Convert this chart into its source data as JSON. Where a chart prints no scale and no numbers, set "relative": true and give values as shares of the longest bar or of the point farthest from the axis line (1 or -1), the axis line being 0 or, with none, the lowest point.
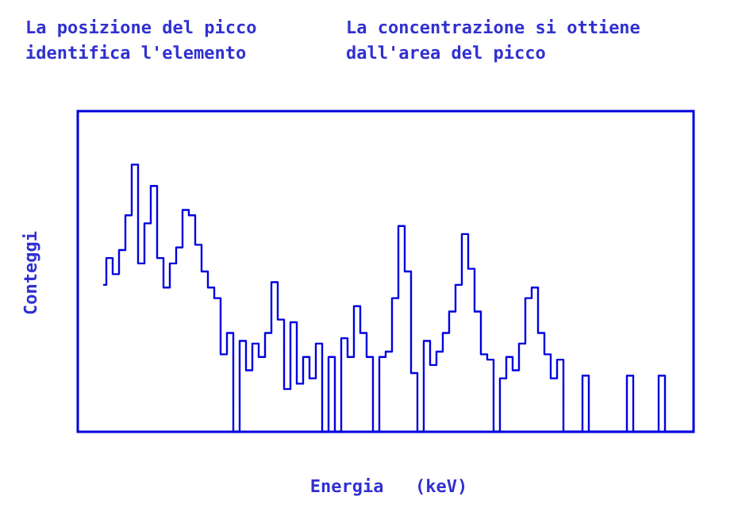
{
  "chart_data": {
    "type": "step",
    "relative": true,
    "xlabel": "Energia   (keV)",
    "ylabel": "Conteggi",
    "annotations": [
      "La posizione del picco\nidentifica l'elemento",
      "La concentrazione si ottiene\ndall'area del picco"
    ],
    "categories": [
      null,
      null,
      null,
      null,
      null,
      null,
      null,
      null,
      null,
      null,
      null,
      null,
      null,
      null,
      null,
      null,
      null,
      null,
      null,
      null,
      null,
      null,
      null,
      null,
      null,
      null,
      null,
      null,
      null,
      null,
      null,
      null,
      null,
      null,
      null,
      null,
      null,
      null,
      null,
      null,
      null,
      null,
      null,
      null,
      null,
      null,
      null,
      null,
      null,
      null,
      null,
      null,
      null,
      null,
      null,
      null,
      null,
      null,
      null,
      null,
      null,
      null,
      null,
      null,
      null,
      null,
      null,
      null,
      null,
      null,
      null,
      null,
      null,
      null,
      null,
      null,
      null,
      null,
      null,
      null,
      null,
      null,
      null,
      null,
      null,
      null,
      null,
      null,
      null,
      null,
      null,
      null,
      null,
      null,
      null,
      null,
      null,
      null
    ],
    "series": [
      {
        "color": "#0000dd",
        "values": [
          null,
          null,
          null,
          null,
          0.55,
          0.65,
          0.59,
          0.68,
          0.81,
          1,
          0.63,
          0.78,
          0.92,
          0.65,
          0.54,
          0.63,
          0.69,
          0.83,
          0.81,
          0.7,
          0.6,
          0.54,
          0.5,
          0.29,
          0.37,
          0,
          0.34,
          0.23,
          0.33,
          0.28,
          0.37,
          0.56,
          0.42,
          0.16,
          0.41,
          0.18,
          0.28,
          0.2,
          0.33,
          0,
          0.28,
          0,
          0.35,
          0.28,
          0.47,
          0.37,
          0.28,
          0,
          0.28,
          0.3,
          0.5,
          0.77,
          0.6,
          0.22,
          0,
          0.34,
          0.25,
          0.3,
          0.37,
          0.45,
          0.55,
          0.74,
          0.61,
          0.45,
          0.29,
          0.27,
          0,
          0.2,
          0.28,
          0.23,
          0.33,
          0.5,
          0.54,
          0.37,
          0.29,
          0.2,
          0.27,
          0,
          0,
          0,
          0.21,
          0,
          0,
          0,
          0,
          0,
          0,
          0.21,
          0,
          0,
          0,
          0,
          0.21,
          0,
          0,
          0,
          0,
          0
        ]
      }
    ]
  }
}
